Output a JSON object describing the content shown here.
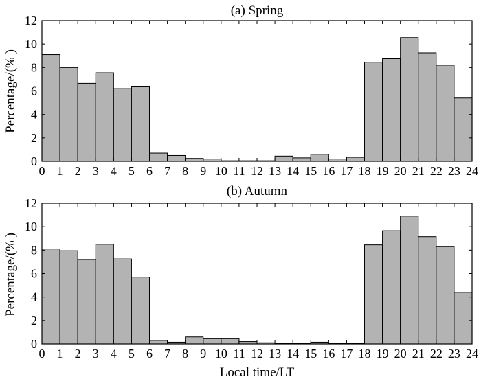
{
  "figure": {
    "panels": [
      {
        "title": "(a) Spring",
        "ylabel": "Percentage/(% )"
      },
      {
        "title": "(b) Autumn",
        "ylabel": "Percentage/(% )"
      }
    ],
    "xlabel": "Local time/LT"
  },
  "chart_data": [
    {
      "type": "bar",
      "title": "(a) Spring",
      "xlabel": "",
      "ylabel": "Percentage/(% )",
      "xlim": [
        0,
        24
      ],
      "ylim": [
        0,
        12
      ],
      "xticks": [
        0,
        1,
        2,
        3,
        4,
        5,
        6,
        7,
        8,
        9,
        10,
        11,
        12,
        13,
        14,
        15,
        16,
        17,
        18,
        19,
        20,
        21,
        22,
        23,
        24
      ],
      "yticks": [
        0,
        2,
        4,
        6,
        8,
        10,
        12
      ],
      "categories": [
        "0",
        "1",
        "2",
        "3",
        "4",
        "5",
        "6",
        "7",
        "8",
        "9",
        "10",
        "11",
        "12",
        "13",
        "14",
        "15",
        "16",
        "17",
        "18",
        "19",
        "20",
        "21",
        "22",
        "23"
      ],
      "values": [
        9.1,
        8.0,
        6.65,
        7.55,
        6.2,
        6.35,
        0.7,
        0.5,
        0.25,
        0.2,
        0.05,
        0.05,
        0.05,
        0.45,
        0.3,
        0.6,
        0.2,
        0.35,
        8.45,
        8.75,
        10.55,
        9.25,
        8.2,
        5.4
      ],
      "bar_color": "#b3b3b3",
      "grid": false,
      "legend": "none"
    },
    {
      "type": "bar",
      "title": "(b) Autumn",
      "xlabel": "Local time/LT",
      "ylabel": "Percentage/(% )",
      "xlim": [
        0,
        24
      ],
      "ylim": [
        0,
        12
      ],
      "xticks": [
        0,
        1,
        2,
        3,
        4,
        5,
        6,
        7,
        8,
        9,
        10,
        11,
        12,
        13,
        14,
        15,
        16,
        17,
        18,
        19,
        20,
        21,
        22,
        23,
        24
      ],
      "yticks": [
        0,
        2,
        4,
        6,
        8,
        10,
        12
      ],
      "categories": [
        "0",
        "1",
        "2",
        "3",
        "4",
        "5",
        "6",
        "7",
        "8",
        "9",
        "10",
        "11",
        "12",
        "13",
        "14",
        "15",
        "16",
        "17",
        "18",
        "19",
        "20",
        "21",
        "22",
        "23"
      ],
      "values": [
        8.1,
        7.95,
        7.2,
        8.5,
        7.25,
        5.7,
        0.3,
        0.15,
        0.6,
        0.45,
        0.45,
        0.2,
        0.1,
        0.05,
        0.05,
        0.15,
        0.05,
        0.05,
        8.45,
        9.65,
        10.9,
        9.15,
        8.3,
        4.4
      ],
      "bar_color": "#b3b3b3",
      "grid": false,
      "legend": "none"
    }
  ]
}
